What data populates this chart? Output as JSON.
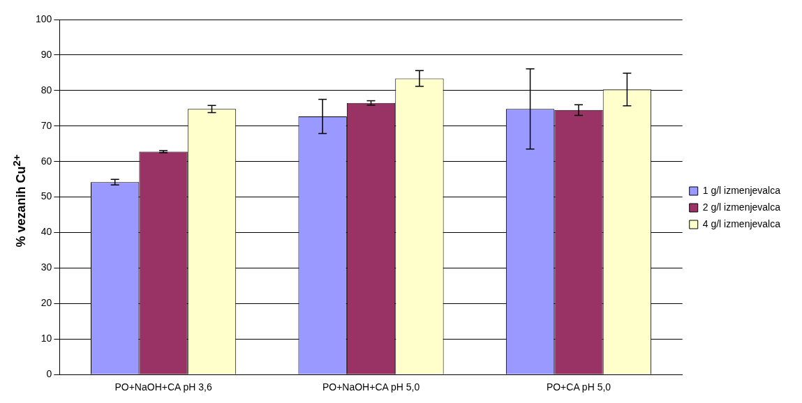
{
  "chart_data": {
    "type": "bar",
    "ylabel": "% vezanih Cu$^{2+}$",
    "categories": [
      "PO+NaOH+CA pH 3,6",
      "PO+NaOH+CA pH 5,0",
      "PO+CA pH 5,0"
    ],
    "series": [
      {
        "name": "1 g/l izmenjevalca",
        "color": "#9999ff",
        "values": [
          54.2,
          72.7,
          74.8
        ],
        "errors": [
          0.8,
          4.8,
          11.3
        ]
      },
      {
        "name": "2 g/l izmenjevalca",
        "color": "#993366",
        "values": [
          62.8,
          76.5,
          74.5
        ],
        "errors": [
          0.3,
          0.6,
          1.5
        ]
      },
      {
        "name": "4 g/l izmenjevalca",
        "color": "#ffffcc",
        "values": [
          74.8,
          83.4,
          80.3
        ],
        "errors": [
          1.0,
          2.2,
          4.6
        ]
      }
    ],
    "ylim": [
      0,
      100
    ],
    "yticks": [
      0,
      10,
      20,
      30,
      40,
      50,
      60,
      70,
      80,
      90,
      100
    ],
    "grid": "y",
    "legend": "right"
  }
}
